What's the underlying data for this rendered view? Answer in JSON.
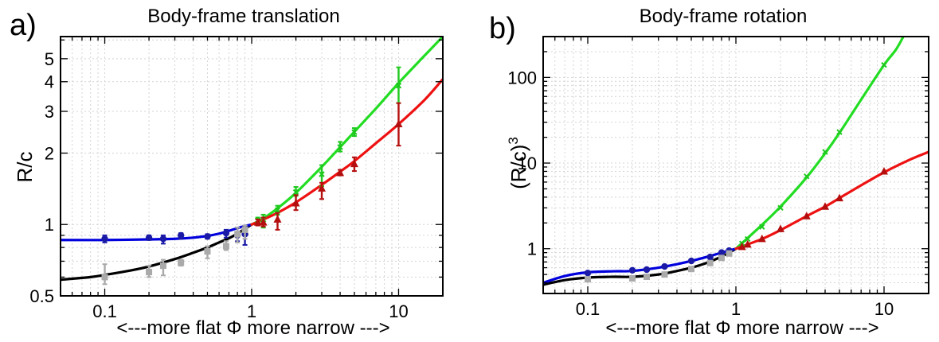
{
  "chart_data": [
    {
      "panel": "a)",
      "type": "scatter",
      "title": "Body-frame translation",
      "xlabel": "<---more flat Φ more narrow --->",
      "ylabel": "R/c",
      "xscale": "log",
      "yscale": "log",
      "xlim": [
        0.05,
        20
      ],
      "ylim": [
        0.5,
        6.2
      ],
      "grid": true,
      "xticks": [
        {
          "v": 0.1,
          "label": "0.1"
        },
        {
          "v": 1,
          "label": "1"
        },
        {
          "v": 10,
          "label": "10"
        }
      ],
      "yticks": [
        {
          "v": 0.5,
          "label": "0.5"
        },
        {
          "v": 1,
          "label": "1"
        },
        {
          "v": 2,
          "label": "2"
        },
        {
          "v": 3,
          "label": "3"
        },
        {
          "v": 4,
          "label": "4"
        },
        {
          "v": 5,
          "label": "5"
        }
      ],
      "series": [
        {
          "color": "#1a1aa6",
          "marker": "circle",
          "points": [
            {
              "x": 0.1,
              "y": 0.87,
              "lo": 0.84,
              "hi": 0.9
            },
            {
              "x": 0.2,
              "y": 0.88,
              "lo": 0.86,
              "hi": 0.9
            },
            {
              "x": 0.25,
              "y": 0.87,
              "lo": 0.83,
              "hi": 0.9
            },
            {
              "x": 0.33,
              "y": 0.9,
              "lo": 0.87,
              "hi": 0.92
            },
            {
              "x": 0.5,
              "y": 0.89,
              "lo": 0.87,
              "hi": 0.91
            },
            {
              "x": 0.67,
              "y": 0.92,
              "lo": 0.88,
              "hi": 0.95
            },
            {
              "x": 0.8,
              "y": 0.9,
              "lo": 0.85,
              "hi": 0.97
            },
            {
              "x": 0.9,
              "y": 0.91,
              "lo": 0.82,
              "hi": 0.99
            }
          ]
        },
        {
          "color": "#aaaaaa",
          "marker": "square",
          "points": [
            {
              "x": 0.1,
              "y": 0.6,
              "lo": 0.56,
              "hi": 0.68
            },
            {
              "x": 0.2,
              "y": 0.63,
              "lo": 0.6,
              "hi": 0.67
            },
            {
              "x": 0.25,
              "y": 0.67,
              "lo": 0.61,
              "hi": 0.71
            },
            {
              "x": 0.33,
              "y": 0.69,
              "lo": 0.67,
              "hi": 0.71
            },
            {
              "x": 0.5,
              "y": 0.77,
              "lo": 0.72,
              "hi": 0.81
            },
            {
              "x": 0.67,
              "y": 0.81,
              "lo": 0.78,
              "hi": 0.85
            },
            {
              "x": 0.8,
              "y": 0.91,
              "lo": 0.84,
              "hi": 0.97
            },
            {
              "x": 0.9,
              "y": 0.95,
              "lo": 0.87,
              "hi": 0.99
            }
          ]
        },
        {
          "color": "#1ec81e",
          "marker": "x",
          "points": [
            {
              "x": 1.1,
              "y": 1.04,
              "lo": 1.0,
              "hi": 1.07
            },
            {
              "x": 1.2,
              "y": 1.05,
              "lo": 0.97,
              "hi": 1.1
            },
            {
              "x": 1.5,
              "y": 1.15,
              "lo": 1.1,
              "hi": 1.2
            },
            {
              "x": 2,
              "y": 1.37,
              "lo": 1.32,
              "hi": 1.44
            },
            {
              "x": 3,
              "y": 1.63,
              "lo": 1.45,
              "hi": 1.78
            },
            {
              "x": 4,
              "y": 2.12,
              "lo": 2.03,
              "hi": 2.23
            },
            {
              "x": 5,
              "y": 2.45,
              "lo": 2.36,
              "hi": 2.55
            },
            {
              "x": 10,
              "y": 3.85,
              "lo": 3.25,
              "hi": 4.6
            }
          ]
        },
        {
          "color": "#b40e0e",
          "marker": "triangle",
          "points": [
            {
              "x": 1.1,
              "y": 1.02,
              "lo": 0.99,
              "hi": 1.05
            },
            {
              "x": 1.2,
              "y": 1.02,
              "lo": 0.98,
              "hi": 1.07
            },
            {
              "x": 1.5,
              "y": 1.05,
              "lo": 0.95,
              "hi": 1.12
            },
            {
              "x": 2,
              "y": 1.23,
              "lo": 1.15,
              "hi": 1.33
            },
            {
              "x": 3,
              "y": 1.42,
              "lo": 1.28,
              "hi": 1.5
            },
            {
              "x": 4,
              "y": 1.65,
              "lo": 1.61,
              "hi": 1.7
            },
            {
              "x": 5,
              "y": 1.8,
              "lo": 1.68,
              "hi": 1.92
            },
            {
              "x": 10,
              "y": 2.65,
              "lo": 2.15,
              "hi": 3.25
            }
          ]
        }
      ],
      "curves": [
        {
          "color": "#000000",
          "points": [
            [
              0.05,
              0.585
            ],
            [
              0.08,
              0.6
            ],
            [
              0.1,
              0.613
            ],
            [
              0.15,
              0.64
            ],
            [
              0.2,
              0.665
            ],
            [
              0.3,
              0.715
            ],
            [
              0.4,
              0.76
            ],
            [
              0.5,
              0.8
            ],
            [
              0.6,
              0.84
            ],
            [
              0.7,
              0.875
            ],
            [
              0.8,
              0.915
            ],
            [
              0.9,
              0.96
            ],
            [
              1.0,
              1.0
            ]
          ]
        },
        {
          "color": "#0000dd",
          "points": [
            [
              0.05,
              0.86
            ],
            [
              0.1,
              0.86
            ],
            [
              0.2,
              0.865
            ],
            [
              0.3,
              0.87
            ],
            [
              0.4,
              0.88
            ],
            [
              0.5,
              0.895
            ],
            [
              0.6,
              0.915
            ],
            [
              0.7,
              0.94
            ],
            [
              0.8,
              0.965
            ],
            [
              0.9,
              0.985
            ],
            [
              1.0,
              1.0
            ]
          ]
        },
        {
          "color": "#22dd22",
          "points": [
            [
              1.0,
              1.0
            ],
            [
              1.2,
              1.06
            ],
            [
              1.5,
              1.17
            ],
            [
              2,
              1.36
            ],
            [
              3,
              1.75
            ],
            [
              4,
              2.12
            ],
            [
              5,
              2.46
            ],
            [
              7,
              3.08
            ],
            [
              10,
              3.95
            ],
            [
              15,
              5.15
            ],
            [
              20,
              6.2
            ]
          ]
        },
        {
          "color": "#ee1111",
          "points": [
            [
              1.0,
              1.0
            ],
            [
              1.2,
              1.05
            ],
            [
              1.5,
              1.12
            ],
            [
              2,
              1.24
            ],
            [
              3,
              1.47
            ],
            [
              4,
              1.67
            ],
            [
              5,
              1.85
            ],
            [
              7,
              2.2
            ],
            [
              10,
              2.65
            ],
            [
              15,
              3.35
            ],
            [
              20,
              4.1
            ]
          ]
        }
      ]
    },
    {
      "panel": "b)",
      "type": "scatter",
      "title": "Body-frame rotation",
      "xlabel": "<---more flat Φ more narrow --->",
      "ylabel": "(R/c)",
      "ylabel_sup": "3",
      "xscale": "log",
      "yscale": "log",
      "xlim": [
        0.05,
        20
      ],
      "ylim": [
        0.3,
        300
      ],
      "grid": true,
      "xticks": [
        {
          "v": 0.1,
          "label": "0.1"
        },
        {
          "v": 1,
          "label": "1"
        },
        {
          "v": 10,
          "label": "10"
        }
      ],
      "yticks": [
        {
          "v": 1,
          "label": "1"
        },
        {
          "v": 10,
          "label": "10"
        },
        {
          "v": 100,
          "label": "100"
        }
      ],
      "series": [
        {
          "color": "#1a1aa6",
          "marker": "circle",
          "points": [
            {
              "x": 0.1,
              "y": 0.52
            },
            {
              "x": 0.2,
              "y": 0.56
            },
            {
              "x": 0.25,
              "y": 0.57
            },
            {
              "x": 0.33,
              "y": 0.62
            },
            {
              "x": 0.5,
              "y": 0.72
            },
            {
              "x": 0.67,
              "y": 0.8
            },
            {
              "x": 0.8,
              "y": 0.9
            },
            {
              "x": 0.9,
              "y": 0.95
            }
          ]
        },
        {
          "color": "#aaaaaa",
          "marker": "square",
          "points": [
            {
              "x": 0.1,
              "y": 0.44
            },
            {
              "x": 0.2,
              "y": 0.45
            },
            {
              "x": 0.25,
              "y": 0.47
            },
            {
              "x": 0.33,
              "y": 0.5
            },
            {
              "x": 0.5,
              "y": 0.58
            },
            {
              "x": 0.67,
              "y": 0.68
            },
            {
              "x": 0.8,
              "y": 0.78
            },
            {
              "x": 0.9,
              "y": 0.88
            }
          ]
        },
        {
          "color": "#1ec81e",
          "marker": "x",
          "points": [
            {
              "x": 1.1,
              "y": 1.15
            },
            {
              "x": 1.2,
              "y": 1.3
            },
            {
              "x": 1.5,
              "y": 1.8
            },
            {
              "x": 2,
              "y": 3.0
            },
            {
              "x": 3,
              "y": 7.0
            },
            {
              "x": 4,
              "y": 13.5
            },
            {
              "x": 5,
              "y": 23.0
            },
            {
              "x": 10,
              "y": 140.0
            }
          ]
        },
        {
          "color": "#b40e0e",
          "marker": "triangle",
          "points": [
            {
              "x": 1.1,
              "y": 1.05
            },
            {
              "x": 1.2,
              "y": 1.12
            },
            {
              "x": 1.5,
              "y": 1.3
            },
            {
              "x": 2,
              "y": 1.7
            },
            {
              "x": 3,
              "y": 2.4
            },
            {
              "x": 4,
              "y": 3.1
            },
            {
              "x": 5,
              "y": 3.9
            },
            {
              "x": 10,
              "y": 8.0
            }
          ]
        }
      ],
      "curves": [
        {
          "color": "#000000",
          "points": [
            [
              0.05,
              0.38
            ],
            [
              0.07,
              0.43
            ],
            [
              0.1,
              0.46
            ],
            [
              0.15,
              0.47
            ],
            [
              0.2,
              0.47
            ],
            [
              0.3,
              0.5
            ],
            [
              0.4,
              0.55
            ],
            [
              0.5,
              0.6
            ],
            [
              0.6,
              0.66
            ],
            [
              0.7,
              0.73
            ],
            [
              0.8,
              0.81
            ],
            [
              0.9,
              0.9
            ],
            [
              1.0,
              1.0
            ]
          ]
        },
        {
          "color": "#0000dd",
          "points": [
            [
              0.05,
              0.4
            ],
            [
              0.07,
              0.48
            ],
            [
              0.1,
              0.53
            ],
            [
              0.15,
              0.545
            ],
            [
              0.2,
              0.55
            ],
            [
              0.3,
              0.6
            ],
            [
              0.4,
              0.66
            ],
            [
              0.5,
              0.72
            ],
            [
              0.6,
              0.78
            ],
            [
              0.7,
              0.84
            ],
            [
              0.8,
              0.9
            ],
            [
              0.9,
              0.95
            ],
            [
              1.0,
              1.0
            ]
          ]
        },
        {
          "color": "#22dd22",
          "points": [
            [
              1.0,
              1.0
            ],
            [
              1.5,
              1.9
            ],
            [
              2,
              3.1
            ],
            [
              3,
              6.8
            ],
            [
              4,
              13.0
            ],
            [
              5,
              22.5
            ],
            [
              7,
              55.0
            ],
            [
              10,
              140.0
            ],
            [
              12,
              210.0
            ],
            [
              13.5,
              300.0
            ]
          ]
        },
        {
          "color": "#ee1111",
          "points": [
            [
              1.0,
              1.0
            ],
            [
              1.5,
              1.3
            ],
            [
              2,
              1.65
            ],
            [
              3,
              2.4
            ],
            [
              4,
              3.1
            ],
            [
              5,
              3.9
            ],
            [
              7,
              5.5
            ],
            [
              10,
              7.8
            ],
            [
              15,
              11.0
            ],
            [
              20,
              13.5
            ]
          ]
        }
      ]
    }
  ]
}
